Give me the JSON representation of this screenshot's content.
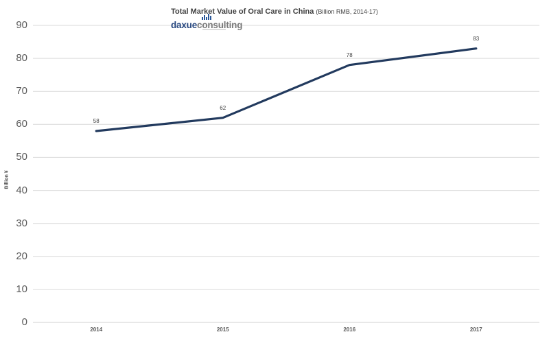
{
  "header": {
    "title": "Total Market Value of Oral Care in China",
    "subtitle": "(Billion RMB, 2014-17)"
  },
  "logo": {
    "name_primary": "daxue",
    "name_secondary": "consulting",
    "icon": "bar-chart-icon"
  },
  "colors": {
    "series_line": "#223a5e",
    "gridline": "#d9d9d9",
    "axis_line": "#d2d2d2",
    "tick_label": "#595959",
    "title_text": "#3f3f3f",
    "data_label": "#444444",
    "logo_primary": "#27477f",
    "logo_secondary": "#7a7a7a"
  },
  "chart_data": {
    "type": "line",
    "categories": [
      "2014",
      "2015",
      "2016",
      "2017"
    ],
    "values": [
      58,
      62,
      78,
      83
    ],
    "data_labels": [
      "58",
      "62",
      "78",
      "83"
    ],
    "title": "Total Market Value of Oral Care in China",
    "subtitle": "(Billion RMB, 2014-17)",
    "xlabel": "",
    "ylabel": "Billion ¥",
    "ylim": [
      0,
      90
    ],
    "yticks": [
      0,
      10,
      20,
      30,
      40,
      50,
      60,
      70,
      80,
      90
    ],
    "grid": true,
    "legend": false,
    "data_labels_visible": true
  }
}
